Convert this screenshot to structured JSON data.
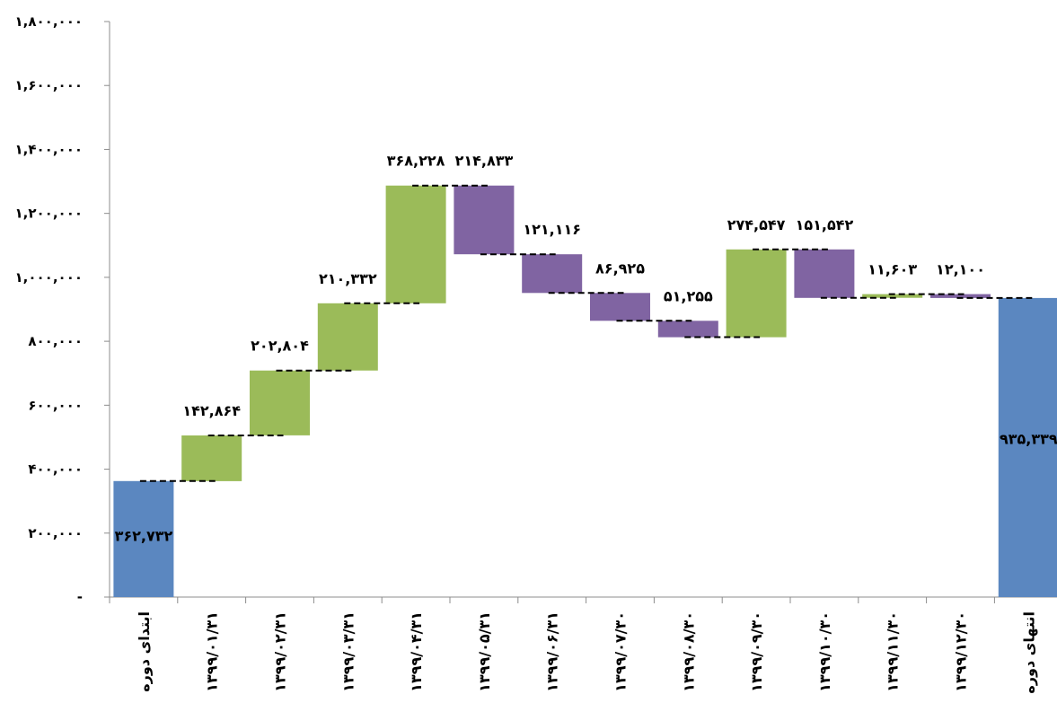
{
  "chart_data": {
    "type": "bar",
    "subtype": "waterfall",
    "title": "",
    "xlabel": "",
    "ylabel": "",
    "ylim": [
      0,
      1800000
    ],
    "y_ticks": [
      {
        "value": 0,
        "label": "-"
      },
      {
        "value": 200000,
        "label": "۲۰۰,۰۰۰"
      },
      {
        "value": 400000,
        "label": "۴۰۰,۰۰۰"
      },
      {
        "value": 600000,
        "label": "۶۰۰,۰۰۰"
      },
      {
        "value": 800000,
        "label": "۸۰۰,۰۰۰"
      },
      {
        "value": 1000000,
        "label": "۱,۰۰۰,۰۰۰"
      },
      {
        "value": 1200000,
        "label": "۱,۲۰۰,۰۰۰"
      },
      {
        "value": 1400000,
        "label": "۱,۴۰۰,۰۰۰"
      },
      {
        "value": 1600000,
        "label": "۱,۶۰۰,۰۰۰"
      },
      {
        "value": 1800000,
        "label": "۱,۸۰۰,۰۰۰"
      }
    ],
    "grid": false,
    "connector_lines": "dashed",
    "colors": {
      "total": "#5b87c0",
      "increase": "#9bbb59",
      "decrease": "#8064a2"
    },
    "bars": [
      {
        "category": "ابتدای دوره",
        "kind": "total",
        "value": 362732,
        "label": "۳۶۲,۷۳۲"
      },
      {
        "category": "۱۳۹۹/۰۱/۳۱",
        "kind": "increase",
        "value": 142864,
        "label": "۱۴۲,۸۶۴"
      },
      {
        "category": "۱۳۹۹/۰۲/۳۱",
        "kind": "increase",
        "value": 202804,
        "label": "۲۰۲,۸۰۴"
      },
      {
        "category": "۱۳۹۹/۰۳/۳۱",
        "kind": "increase",
        "value": 210332,
        "label": "۲۱۰,۳۳۲"
      },
      {
        "category": "۱۳۹۹/۰۴/۳۱",
        "kind": "increase",
        "value": 368228,
        "label": "۳۶۸,۲۲۸"
      },
      {
        "category": "۱۳۹۹/۰۵/۳۱",
        "kind": "decrease",
        "value": 214833,
        "label": "۲۱۴,۸۳۳"
      },
      {
        "category": "۱۳۹۹/۰۶/۳۱",
        "kind": "decrease",
        "value": 121116,
        "label": "۱۲۱,۱۱۶"
      },
      {
        "category": "۱۳۹۹/۰۷/۳۰",
        "kind": "decrease",
        "value": 86925,
        "label": "۸۶,۹۲۵"
      },
      {
        "category": "۱۳۹۹/۰۸/۳۰",
        "kind": "decrease",
        "value": 51255,
        "label": "۵۱,۲۵۵"
      },
      {
        "category": "۱۳۹۹/۰۹/۳۰",
        "kind": "increase",
        "value": 274547,
        "label": "۲۷۴,۵۴۷"
      },
      {
        "category": "۱۳۹۹/۱۰/۳۰",
        "kind": "decrease",
        "value": 151542,
        "label": "۱۵۱,۵۴۲"
      },
      {
        "category": "۱۳۹۹/۱۱/۳۰",
        "kind": "increase",
        "value": 11603,
        "label": "۱۱,۶۰۳"
      },
      {
        "category": "۱۳۹۹/۱۲/۳۰",
        "kind": "decrease",
        "value": 12100,
        "label": "۱۲,۱۰۰"
      },
      {
        "category": "انتهای دوره",
        "kind": "total",
        "value": 935339,
        "label": "۹۳۵,۳۳۹"
      }
    ]
  }
}
